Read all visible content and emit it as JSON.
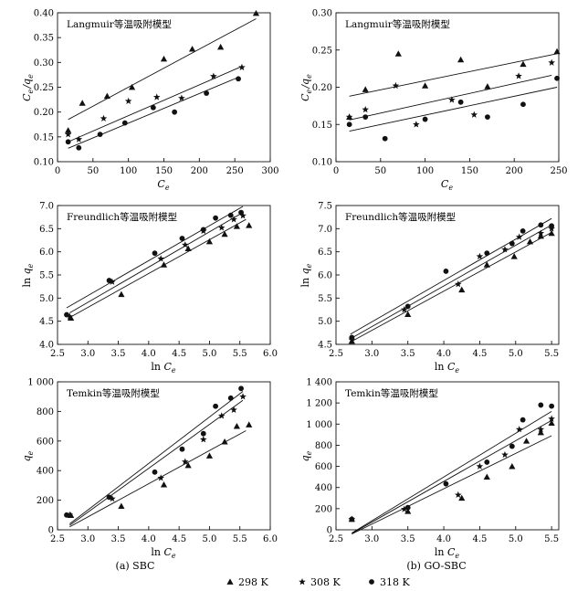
{
  "panel_labels": {
    "left": "(a)  SBC",
    "right": "(b)  GO-SBC"
  },
  "legend": {
    "items": [
      {
        "marker": "triangle",
        "label": "298 K"
      },
      {
        "marker": "star",
        "label": "308 K"
      },
      {
        "marker": "circle",
        "label": "318 K"
      }
    ]
  },
  "chart_data": [
    {
      "id": "langmuir-sbc",
      "type": "scatter",
      "title": "Langmuir等温吸附模型",
      "xlabel": "Ce",
      "ylabel": "Ce/qe",
      "xlim": [
        0,
        300
      ],
      "ylim": [
        0.1,
        0.4
      ],
      "xticks": [
        0,
        50,
        100,
        150,
        200,
        250,
        300
      ],
      "yticks": [
        0.1,
        0.15,
        0.2,
        0.25,
        0.3,
        0.35,
        0.4
      ],
      "ytick_labels": [
        "0.10",
        "0.15",
        "0.20",
        "0.25",
        "0.30",
        "0.35",
        "0.40"
      ],
      "series": [
        {
          "name": "298 K",
          "marker": "triangle",
          "x": [
            15,
            35,
            70,
            105,
            150,
            190,
            230,
            280
          ],
          "y": [
            0.163,
            0.218,
            0.232,
            0.25,
            0.307,
            0.327,
            0.331,
            0.399
          ],
          "fit": [
            [
              15,
              0.185
            ],
            [
              280,
              0.388
            ]
          ]
        },
        {
          "name": "308 K",
          "marker": "star",
          "x": [
            15,
            30,
            65,
            100,
            140,
            175,
            220,
            260
          ],
          "y": [
            0.155,
            0.145,
            0.187,
            0.222,
            0.23,
            0.228,
            0.272,
            0.29
          ],
          "fit": [
            [
              15,
              0.14
            ],
            [
              260,
              0.292
            ]
          ]
        },
        {
          "name": "318 K",
          "marker": "circle",
          "x": [
            15,
            30,
            60,
            95,
            135,
            165,
            210,
            255
          ],
          "y": [
            0.14,
            0.128,
            0.155,
            0.178,
            0.209,
            0.2,
            0.238,
            0.267
          ],
          "fit": [
            [
              15,
              0.127
            ],
            [
              255,
              0.27
            ]
          ]
        }
      ]
    },
    {
      "id": "langmuir-gosbc",
      "type": "scatter",
      "title": "Langmuir等温吸附模型",
      "xlabel": "Ce",
      "ylabel": "Ce/qe",
      "xlim": [
        0,
        250
      ],
      "ylim": [
        0.1,
        0.3
      ],
      "xticks": [
        0,
        50,
        100,
        150,
        200,
        250
      ],
      "yticks": [
        0.1,
        0.15,
        0.2,
        0.25,
        0.3
      ],
      "ytick_labels": [
        "0.10",
        "0.15",
        "0.20",
        "0.25",
        "0.30"
      ],
      "series": [
        {
          "name": "298 K",
          "marker": "triangle",
          "x": [
            15,
            33,
            70,
            100,
            140,
            170,
            210,
            248
          ],
          "y": [
            0.16,
            0.197,
            0.245,
            0.202,
            0.237,
            0.201,
            0.231,
            0.248
          ],
          "fit": [
            [
              15,
              0.188
            ],
            [
              248,
              0.245
            ]
          ]
        },
        {
          "name": "308 K",
          "marker": "star",
          "x": [
            15,
            33,
            67,
            90,
            130,
            155,
            205,
            242
          ],
          "y": [
            0.16,
            0.17,
            0.202,
            0.15,
            0.183,
            0.163,
            0.215,
            0.233
          ],
          "fit": [
            [
              15,
              0.156
            ],
            [
              242,
              0.216
            ]
          ]
        },
        {
          "name": "318 K",
          "marker": "circle",
          "x": [
            15,
            33,
            55,
            100,
            140,
            170,
            210,
            248
          ],
          "y": [
            0.15,
            0.16,
            0.131,
            0.157,
            0.18,
            0.16,
            0.177,
            0.212
          ],
          "fit": [
            [
              15,
              0.141
            ],
            [
              248,
              0.2
            ]
          ]
        }
      ]
    },
    {
      "id": "freundlich-sbc",
      "type": "scatter",
      "title": "Freundlich等温吸附模型",
      "xlabel": "ln Ce",
      "ylabel": "ln qe",
      "xlim": [
        2.5,
        6.0
      ],
      "ylim": [
        4.0,
        7.0
      ],
      "xticks": [
        2.5,
        3.0,
        3.5,
        4.0,
        4.5,
        5.0,
        5.5,
        6.0
      ],
      "yticks": [
        4.0,
        4.5,
        5.0,
        5.5,
        6.0,
        6.5,
        7.0
      ],
      "xtick_labels": [
        "2.5",
        "3.0",
        "3.5",
        "4.0",
        "4.5",
        "5.0",
        "5.5",
        "6.0"
      ],
      "ytick_labels": [
        "4.0",
        "4.5",
        "5.0",
        "5.5",
        "6.0",
        "6.5",
        "7.0"
      ],
      "series": [
        {
          "name": "298 K",
          "marker": "triangle",
          "x": [
            2.72,
            3.55,
            4.25,
            4.65,
            5.0,
            5.25,
            5.45,
            5.65
          ],
          "y": [
            4.57,
            5.08,
            5.72,
            6.07,
            6.22,
            6.38,
            6.55,
            6.57
          ],
          "fit": [
            [
              2.7,
              4.58
            ],
            [
              5.6,
              6.7
            ]
          ]
        },
        {
          "name": "308 K",
          "marker": "star",
          "x": [
            2.7,
            3.4,
            4.2,
            4.6,
            4.9,
            5.2,
            5.4,
            5.55
          ],
          "y": [
            4.6,
            5.35,
            5.85,
            6.15,
            6.45,
            6.52,
            6.7,
            6.78
          ],
          "fit": [
            [
              2.7,
              4.68
            ],
            [
              5.55,
              6.85
            ]
          ]
        },
        {
          "name": "318 K",
          "marker": "circle",
          "x": [
            2.65,
            3.35,
            4.1,
            4.55,
            4.9,
            5.1,
            5.35,
            5.52
          ],
          "y": [
            4.64,
            5.38,
            5.97,
            6.29,
            6.48,
            6.73,
            6.79,
            6.85
          ],
          "fit": [
            [
              2.65,
              4.79
            ],
            [
              5.55,
              6.98
            ]
          ]
        }
      ]
    },
    {
      "id": "freundlich-gosbc",
      "type": "scatter",
      "title": "Freundlich等温吸附模型",
      "xlabel": "ln Ce",
      "ylabel": "ln qe",
      "xlim": [
        2.5,
        5.6
      ],
      "ylim": [
        4.5,
        7.5
      ],
      "xticks": [
        2.5,
        3.0,
        3.5,
        4.0,
        4.5,
        5.0,
        5.5
      ],
      "yticks": [
        4.5,
        5.0,
        5.5,
        6.0,
        6.5,
        7.0,
        7.5
      ],
      "xtick_labels": [
        "2.5",
        "3.0",
        "3.5",
        "4.0",
        "4.5",
        "5.0",
        "5.5"
      ],
      "ytick_labels": [
        "4.5",
        "5.0",
        "5.5",
        "6.0",
        "6.5",
        "7.0",
        "7.5"
      ],
      "series": [
        {
          "name": "298 K",
          "marker": "triangle",
          "x": [
            2.72,
            3.5,
            4.25,
            4.6,
            4.98,
            5.2,
            5.35,
            5.5
          ],
          "y": [
            4.57,
            5.15,
            5.68,
            6.22,
            6.4,
            6.72,
            6.84,
            6.9
          ],
          "fit": [
            [
              2.7,
              4.55
            ],
            [
              5.5,
              6.92
            ]
          ]
        },
        {
          "name": "308 K",
          "marker": "star",
          "x": [
            2.72,
            3.45,
            4.2,
            4.5,
            4.85,
            5.05,
            5.35,
            5.5
          ],
          "y": [
            4.6,
            5.25,
            5.8,
            6.4,
            6.55,
            6.82,
            6.9,
            7.0
          ],
          "fit": [
            [
              2.7,
              4.62
            ],
            [
              5.5,
              7.08
            ]
          ]
        },
        {
          "name": "318 K",
          "marker": "circle",
          "x": [
            2.72,
            3.5,
            4.03,
            4.6,
            4.95,
            5.1,
            5.35,
            5.5
          ],
          "y": [
            4.65,
            5.32,
            6.08,
            6.47,
            6.68,
            6.95,
            7.08,
            7.06
          ],
          "fit": [
            [
              2.7,
              4.72
            ],
            [
              5.5,
              7.22
            ]
          ]
        }
      ]
    },
    {
      "id": "temkin-sbc",
      "type": "scatter",
      "title": "Temkin等温吸附模型",
      "xlabel": "ln Ce",
      "ylabel": "qe",
      "xlim": [
        2.5,
        6.0
      ],
      "ylim": [
        0,
        1000
      ],
      "xticks": [
        2.5,
        3.0,
        3.5,
        4.0,
        4.5,
        5.0,
        5.5,
        6.0
      ],
      "yticks": [
        0,
        200,
        400,
        600,
        800,
        1000
      ],
      "xtick_labels": [
        "2.5",
        "3.0",
        "3.5",
        "4.0",
        "4.5",
        "5.0",
        "5.5",
        "6.0"
      ],
      "ytick_labels": [
        "0",
        "200",
        "400",
        "600",
        "800",
        "1 000"
      ],
      "series": [
        {
          "name": "298 K",
          "marker": "triangle",
          "x": [
            2.72,
            3.55,
            4.25,
            4.65,
            5.0,
            5.25,
            5.45,
            5.65
          ],
          "y": [
            98,
            160,
            305,
            435,
            500,
            595,
            700,
            710
          ],
          "fit": [
            [
              2.7,
              20
            ],
            [
              5.6,
              670
            ]
          ]
        },
        {
          "name": "308 K",
          "marker": "star",
          "x": [
            2.7,
            3.4,
            4.2,
            4.6,
            4.9,
            5.2,
            5.4,
            5.55
          ],
          "y": [
            100,
            210,
            350,
            460,
            610,
            770,
            810,
            900
          ],
          "fit": [
            [
              2.7,
              30
            ],
            [
              5.55,
              875
            ]
          ]
        },
        {
          "name": "318 K",
          "marker": "circle",
          "x": [
            2.65,
            3.35,
            4.1,
            4.55,
            4.9,
            5.1,
            5.35,
            5.52
          ],
          "y": [
            100,
            220,
            390,
            545,
            650,
            835,
            890,
            955
          ],
          "fit": [
            [
              2.7,
              40
            ],
            [
              5.55,
              935
            ]
          ]
        }
      ]
    },
    {
      "id": "temkin-gosbc",
      "type": "scatter",
      "title": "Temkin等温吸附模型",
      "xlabel": "ln Ce",
      "ylabel": "qe",
      "xlim": [
        2.5,
        5.6
      ],
      "ylim": [
        0,
        1400
      ],
      "xticks": [
        2.5,
        3.0,
        3.5,
        4.0,
        4.5,
        5.0,
        5.5
      ],
      "yticks": [
        0,
        200,
        400,
        600,
        800,
        1000,
        1200,
        1400
      ],
      "xtick_labels": [
        "2.5",
        "3.0",
        "3.5",
        "4.0",
        "4.5",
        "5.0",
        "5.5"
      ],
      "ytick_labels": [
        "0",
        "200",
        "400",
        "600",
        "800",
        "1 000",
        "1 200",
        "1 400"
      ],
      "series": [
        {
          "name": "298 K",
          "marker": "triangle",
          "x": [
            2.72,
            3.5,
            4.25,
            4.6,
            4.95,
            5.15,
            5.35,
            5.5
          ],
          "y": [
            100,
            175,
            300,
            500,
            600,
            840,
            920,
            1010
          ],
          "fit": [
            [
              2.72,
              -40
            ],
            [
              5.5,
              890
            ]
          ]
        },
        {
          "name": "308 K",
          "marker": "star",
          "x": [
            2.72,
            3.45,
            4.2,
            4.5,
            4.85,
            5.05,
            5.35,
            5.5
          ],
          "y": [
            100,
            195,
            330,
            600,
            710,
            950,
            950,
            1050
          ],
          "fit": [
            [
              2.72,
              -35
            ],
            [
              5.5,
              1035
            ]
          ]
        },
        {
          "name": "318 K",
          "marker": "circle",
          "x": [
            2.72,
            3.5,
            4.03,
            4.6,
            4.95,
            5.1,
            5.35,
            5.5
          ],
          "y": [
            100,
            210,
            435,
            640,
            790,
            1040,
            1180,
            1170
          ],
          "fit": [
            [
              2.72,
              -30
            ],
            [
              5.5,
              1120
            ]
          ]
        }
      ]
    }
  ]
}
